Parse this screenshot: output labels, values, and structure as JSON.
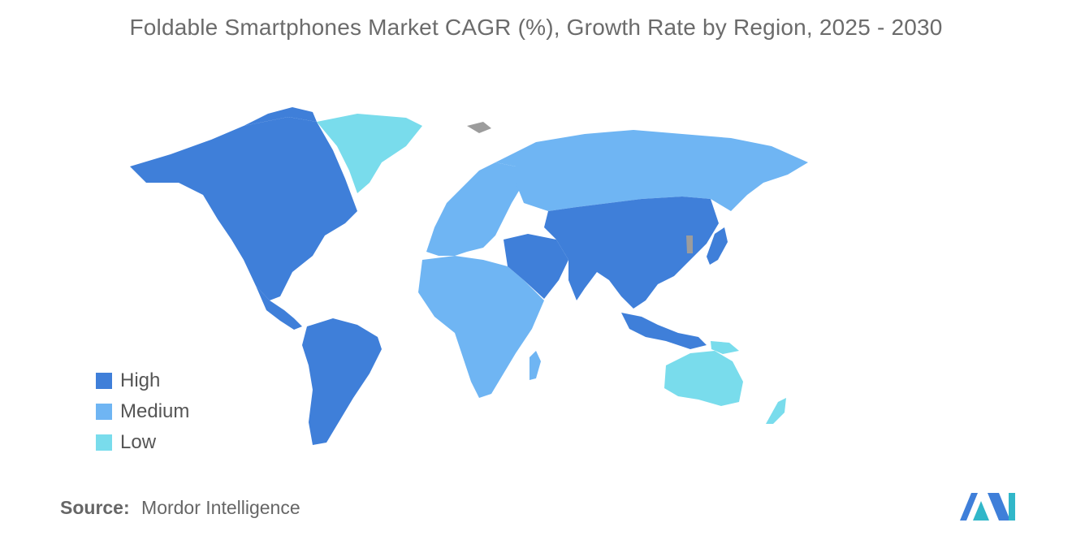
{
  "title": "Foldable Smartphones Market CAGR (%), Growth Rate by Region, 2025 - 2030",
  "legend": [
    {
      "label": "High",
      "color": "#3f7fd9"
    },
    {
      "label": "Medium",
      "color": "#6fb5f3"
    },
    {
      "label": "Low",
      "color": "#79dcec"
    }
  ],
  "source": {
    "key": "Source:",
    "value": "Mordor Intelligence"
  },
  "colors": {
    "no_data": "#9c9c9c"
  },
  "regions": [
    {
      "name": "North America",
      "level": "High"
    },
    {
      "name": "South America",
      "level": "High"
    },
    {
      "name": "Middle East",
      "level": "High"
    },
    {
      "name": "Asia",
      "level": "High"
    },
    {
      "name": "Europe",
      "level": "Medium"
    },
    {
      "name": "Russia",
      "level": "Medium"
    },
    {
      "name": "Africa",
      "level": "Medium"
    },
    {
      "name": "Greenland",
      "level": "Low"
    },
    {
      "name": "Australia and New Zealand",
      "level": "Low"
    }
  ],
  "logo": {
    "name": "mordor-intelligence-logo"
  }
}
